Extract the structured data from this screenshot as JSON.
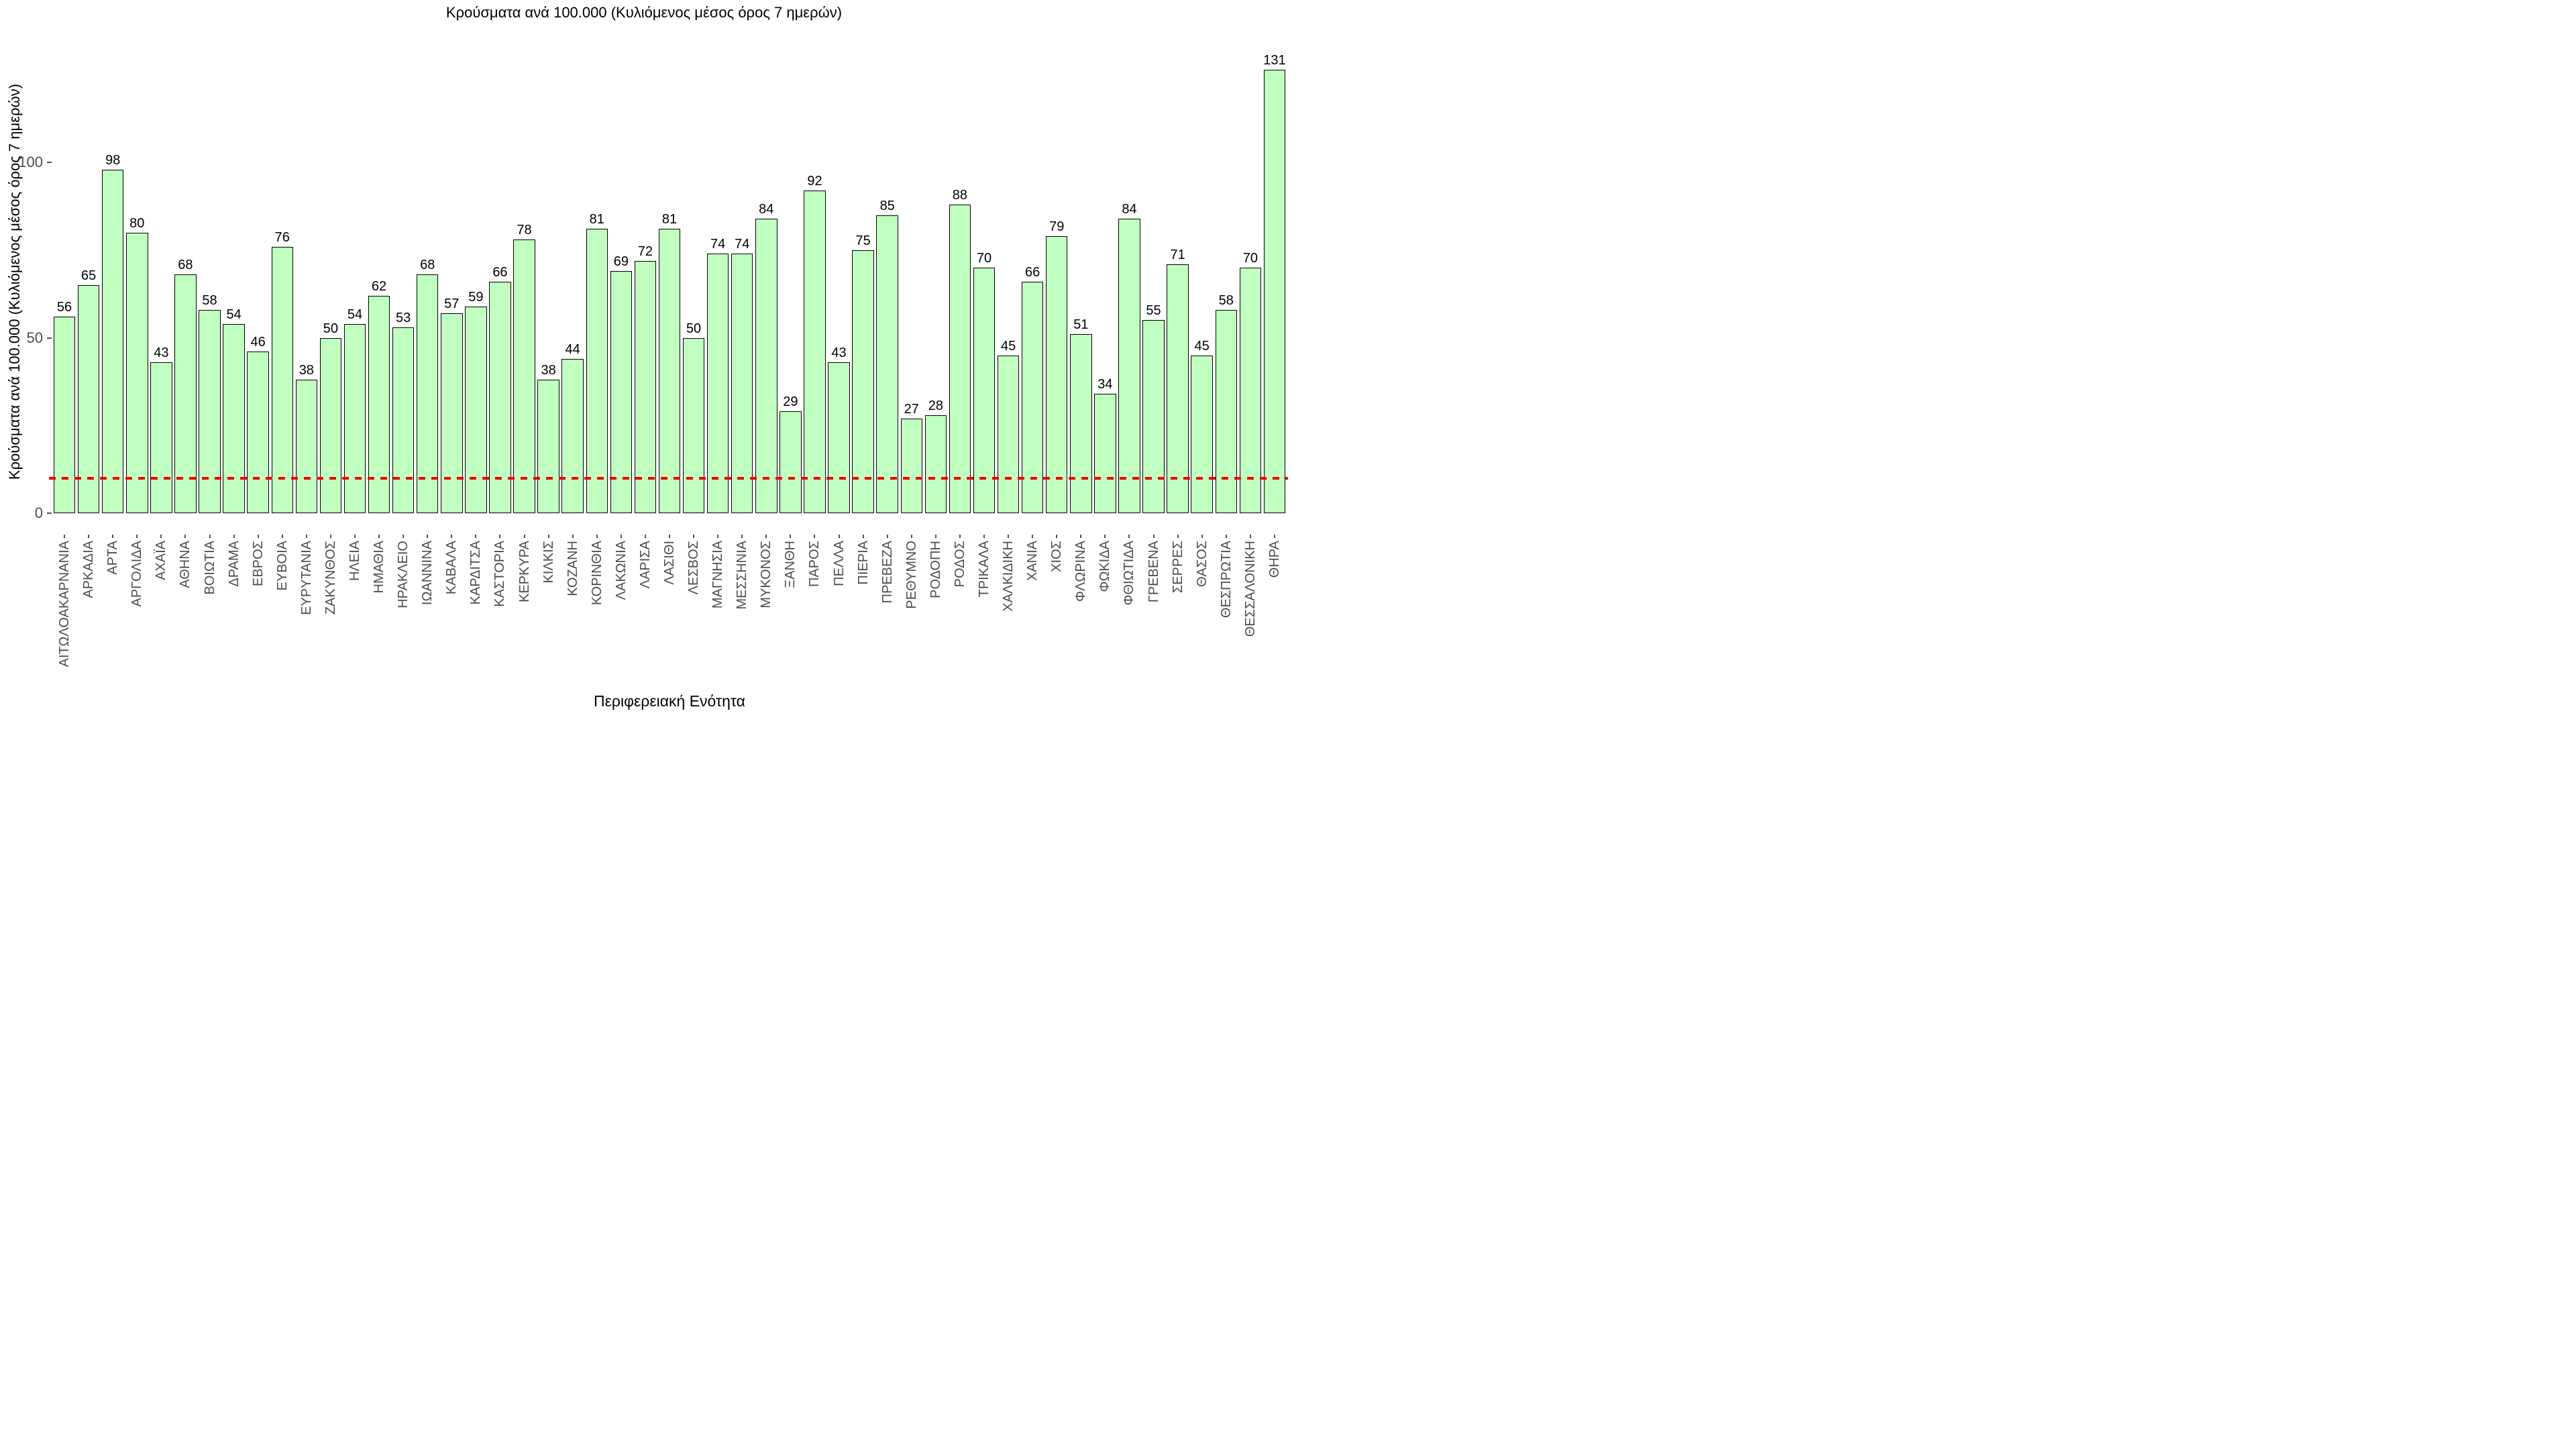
{
  "chart_data": {
    "type": "bar",
    "title": "Κρούσματα ανά 100.000 (Κυλιόμενος μέσος όρος 7 ημερών)",
    "xlabel": "Περιφερειακή Ενότητα",
    "ylabel": "Κρούσματα ανά 100.000 (Κυλιόμενος μέσος όρος 7 ημερών)",
    "categories": [
      "ΑΙΤΩΛΟΑΚΑΡΝΑΝΙΑ",
      "ΑΡΚΑΔΙΑ",
      "ΑΡΤΑ",
      "ΑΡΓΟΛΙΔΑ",
      "ΑΧΑΪΑ",
      "ΑΘΗΝΑ",
      "ΒΟΙΩΤΙΑ",
      "ΔΡΑΜΑ",
      "ΕΒΡΟΣ",
      "ΕΥΒΟΙΑ",
      "ΕΥΡΥΤΑΝΙΑ",
      "ΖΑΚΥΝΘΟΣ",
      "ΗΛΕΙΑ",
      "ΗΜΑΘΙΑ",
      "ΗΡΑΚΛΕΙΟ",
      "ΙΩΑΝΝΙΝΑ",
      "ΚΑΒΑΛΑ",
      "ΚΑΡΔΙΤΣΑ",
      "ΚΑΣΤΟΡΙΑ",
      "ΚΕΡΚΥΡΑ",
      "ΚΙΛΚΙΣ",
      "ΚΟΖΑΝΗ",
      "ΚΟΡΙΝΘΙΑ",
      "ΛΑΚΩΝΙΑ",
      "ΛΑΡΙΣΑ",
      "ΛΑΣΙΘΙ",
      "ΛΕΣΒΟΣ",
      "ΜΑΓΝΗΣΙΑ",
      "ΜΕΣΣΗΝΙΑ",
      "ΜΥΚΟΝΟΣ",
      "ΞΑΝΘΗ",
      "ΠΑΡΟΣ",
      "ΠΕΛΛΑ",
      "ΠΙΕΡΙΑ",
      "ΠΡΕΒΕΖΑ",
      "ΡΕΘΥΜΝΟ",
      "ΡΟΔΟΠΗ",
      "ΡΟΔΟΣ",
      "ΤΡΙΚΑΛΑ",
      "ΧΑΛΚΙΔΙΚΗ",
      "ΧΑΝΙΑ",
      "ΧΙΟΣ",
      "ΦΛΩΡΙΝΑ",
      "ΦΩΚΙΔΑ",
      "ΦΘΙΩΤΙΔΑ",
      "ΓΡΕΒΕΝΑ",
      "ΣΕΡΡΕΣ",
      "ΘΑΣΟΣ",
      "ΘΕΣΠΡΩΤΙΑ",
      "ΘΕΣΣΑΛΟΝΙΚΗ",
      "ΘΗΡΑ"
    ],
    "values": [
      56,
      65,
      98,
      80,
      43,
      68,
      58,
      54,
      46,
      76,
      38,
      50,
      54,
      62,
      53,
      68,
      57,
      59,
      66,
      78,
      38,
      44,
      81,
      69,
      72,
      81,
      50,
      74,
      74,
      84,
      29,
      92,
      43,
      75,
      85,
      27,
      28,
      88,
      70,
      45,
      66,
      79,
      51,
      34,
      84,
      55,
      71,
      45,
      58,
      70,
      131
    ],
    "yticks": [
      0,
      50,
      100
    ],
    "ylim": [
      0,
      131
    ],
    "grid": false,
    "legend": false,
    "bar_fill": "#c1ffc1",
    "bar_border": "#000000",
    "value_label_color": "#000000",
    "axis_text_color": "#4d4d4d",
    "threshold_line": {
      "value": 10,
      "color": "#ee0000",
      "style": "dashed"
    }
  }
}
